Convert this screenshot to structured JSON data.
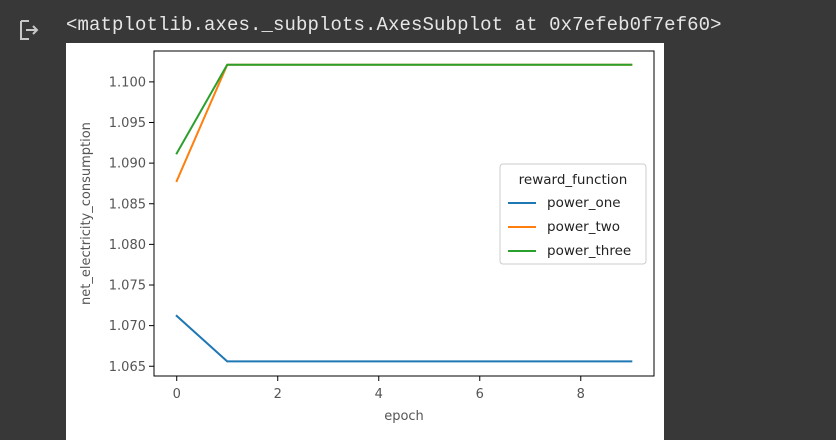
{
  "output": {
    "text": "<matplotlib.axes._subplots.AxesSubplot at 0x7efeb0f7ef60>",
    "icon": "output-arrow-icon"
  },
  "colors": {
    "background": "#383838",
    "output_text": "#e6e6e6",
    "power_one": "#1f77b4",
    "power_two": "#ff7f0e",
    "power_three": "#2ca02c"
  },
  "chart_data": {
    "type": "line",
    "title": "",
    "xlabel": "epoch",
    "ylabel": "net_electricity_consumption",
    "xlim": [
      -0.45,
      9.45
    ],
    "ylim": [
      1.0638,
      1.1038
    ],
    "xticks": [
      0,
      2,
      4,
      6,
      8
    ],
    "xtick_labels": [
      "0",
      "2",
      "4",
      "6",
      "8"
    ],
    "yticks": [
      1.065,
      1.07,
      1.075,
      1.08,
      1.085,
      1.09,
      1.095,
      1.1
    ],
    "ytick_labels": [
      "1.065",
      "1.070",
      "1.075",
      "1.080",
      "1.085",
      "1.090",
      "1.095",
      "1.100"
    ],
    "grid": false,
    "legend": {
      "title": "reward_function",
      "placement": "center-right"
    },
    "x": [
      0,
      1,
      2,
      3,
      4,
      5,
      6,
      7,
      8,
      9
    ],
    "series": [
      {
        "name": "power_one",
        "color": "#1f77b4",
        "values": [
          1.0712,
          1.0656,
          1.0656,
          1.0656,
          1.0656,
          1.0656,
          1.0656,
          1.0656,
          1.0656,
          1.0656
        ]
      },
      {
        "name": "power_two",
        "color": "#ff7f0e",
        "values": [
          1.0878,
          1.1021,
          1.1021,
          1.1021,
          1.1021,
          1.1021,
          1.1021,
          1.1021,
          1.1021,
          1.1021
        ]
      },
      {
        "name": "power_three",
        "color": "#2ca02c",
        "values": [
          1.0912,
          1.1021,
          1.1021,
          1.1021,
          1.1021,
          1.1021,
          1.1021,
          1.1021,
          1.1021,
          1.1021
        ]
      }
    ]
  }
}
